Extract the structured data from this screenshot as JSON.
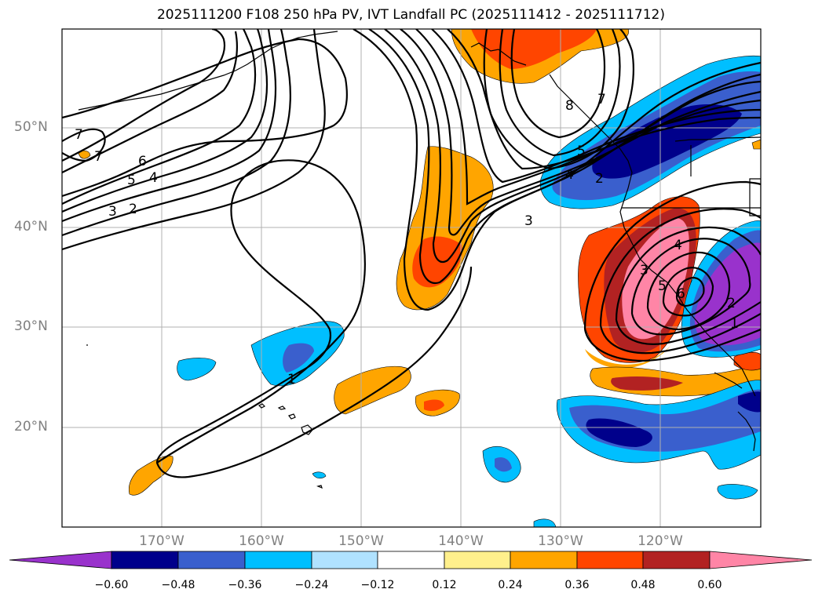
{
  "title": "2025111200 F108 250 hPa PV, IVT Landfall PC (2025111412 - 2025111712)",
  "lat_labels": [
    "50°N",
    "40°N",
    "30°N",
    "20°N"
  ],
  "lon_labels": [
    "170°W",
    "160°W",
    "150°W",
    "140°W",
    "130°W",
    "120°W"
  ],
  "contour_labels": [
    "7",
    "7",
    "6",
    "5",
    "4",
    "3",
    "2",
    "1",
    "3",
    "4",
    "5",
    "7",
    "8",
    "2",
    "4",
    "3",
    "5",
    "6",
    "1",
    "2"
  ],
  "colorbar": {
    "ticks": [
      "−0.60",
      "−0.48",
      "−0.36",
      "−0.24",
      "−0.12",
      "0.12",
      "0.24",
      "0.36",
      "0.48",
      "0.60"
    ],
    "colors": [
      "#9932cc",
      "#00008b",
      "#3a5fcd",
      "#00bfff",
      "#b0e2ff",
      "#ffffff",
      "#fff08c",
      "#ffa500",
      "#ff4500",
      "#b22222",
      "#ff85a6"
    ]
  }
}
